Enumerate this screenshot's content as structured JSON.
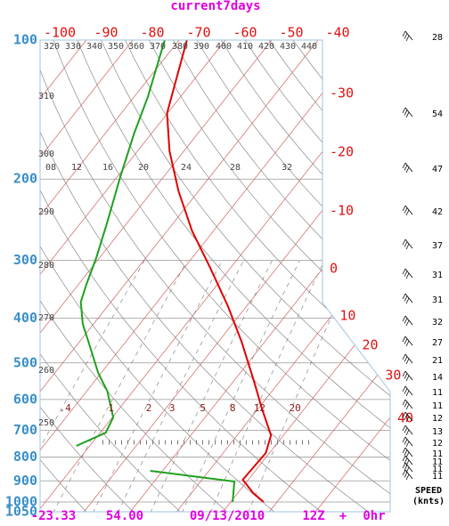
{
  "chart_data": {
    "type": "skewt",
    "title": "current7days",
    "ylim": [
      100,
      1050
    ],
    "yticks": [
      100,
      200,
      300,
      400,
      500,
      600,
      700,
      800,
      900,
      1000,
      1050
    ],
    "xticks": [
      -100,
      -90,
      -80,
      -70,
      -60,
      -50,
      -40,
      -30,
      -20,
      -10,
      0,
      10,
      20,
      30,
      40
    ],
    "dry_adiabats": [
      320,
      330,
      340,
      350,
      360,
      370,
      380,
      390,
      400,
      410,
      420,
      430,
      440,
      310,
      300,
      290,
      280,
      270,
      260,
      250
    ],
    "upper_scale": [
      "08",
      "12",
      "16",
      "20",
      "24",
      "28",
      "32"
    ],
    "mixing_ratios": [
      {
        "value": 0.4,
        "label": ".4"
      },
      1,
      2,
      3,
      5,
      8,
      12,
      20
    ],
    "series": [
      {
        "color": "#e00000",
        "pressure": [
          100,
          144,
          174,
          212,
          259,
          309,
          377,
          450,
          550,
          628,
          717,
          783,
          837,
          895,
          956,
          1000
        ],
        "values": [
          -68.3,
          -60.1,
          -53.1,
          -44.4,
          -34.6,
          -24.8,
          -14,
          -5,
          4.6,
          10.8,
          17.3,
          19.2,
          19,
          18.8,
          23.3,
          27.1
        ]
      },
      {
        "color": "#1fa01f",
        "pressure": [
          100,
          133,
          159,
          199,
          248,
          296,
          338,
          369,
          412,
          460,
          526,
          575,
          656,
          708,
          756,
          800,
          856,
          903,
          1000
        ],
        "values": [
          -73.1,
          -67,
          -63.8,
          -59.2,
          -54.4,
          -50.7,
          -48.3,
          -46.5,
          -42.3,
          -37,
          -30.6,
          -25.6,
          -19.8,
          -18.8,
          -22.9,
          null,
          -2.7,
          17.3,
          20.4
        ]
      }
    ],
    "wind_speeds": [
      28,
      54,
      47,
      42,
      37,
      31,
      31,
      32,
      27,
      21,
      14,
      11,
      11,
      12,
      13,
      12,
      11,
      11,
      11,
      11
    ],
    "wind_label": [
      "SPEED",
      "(knts)"
    ],
    "footer": [
      "-23.33",
      "54.00",
      "09/13/2010",
      "12Z",
      "+",
      "0hr"
    ]
  }
}
